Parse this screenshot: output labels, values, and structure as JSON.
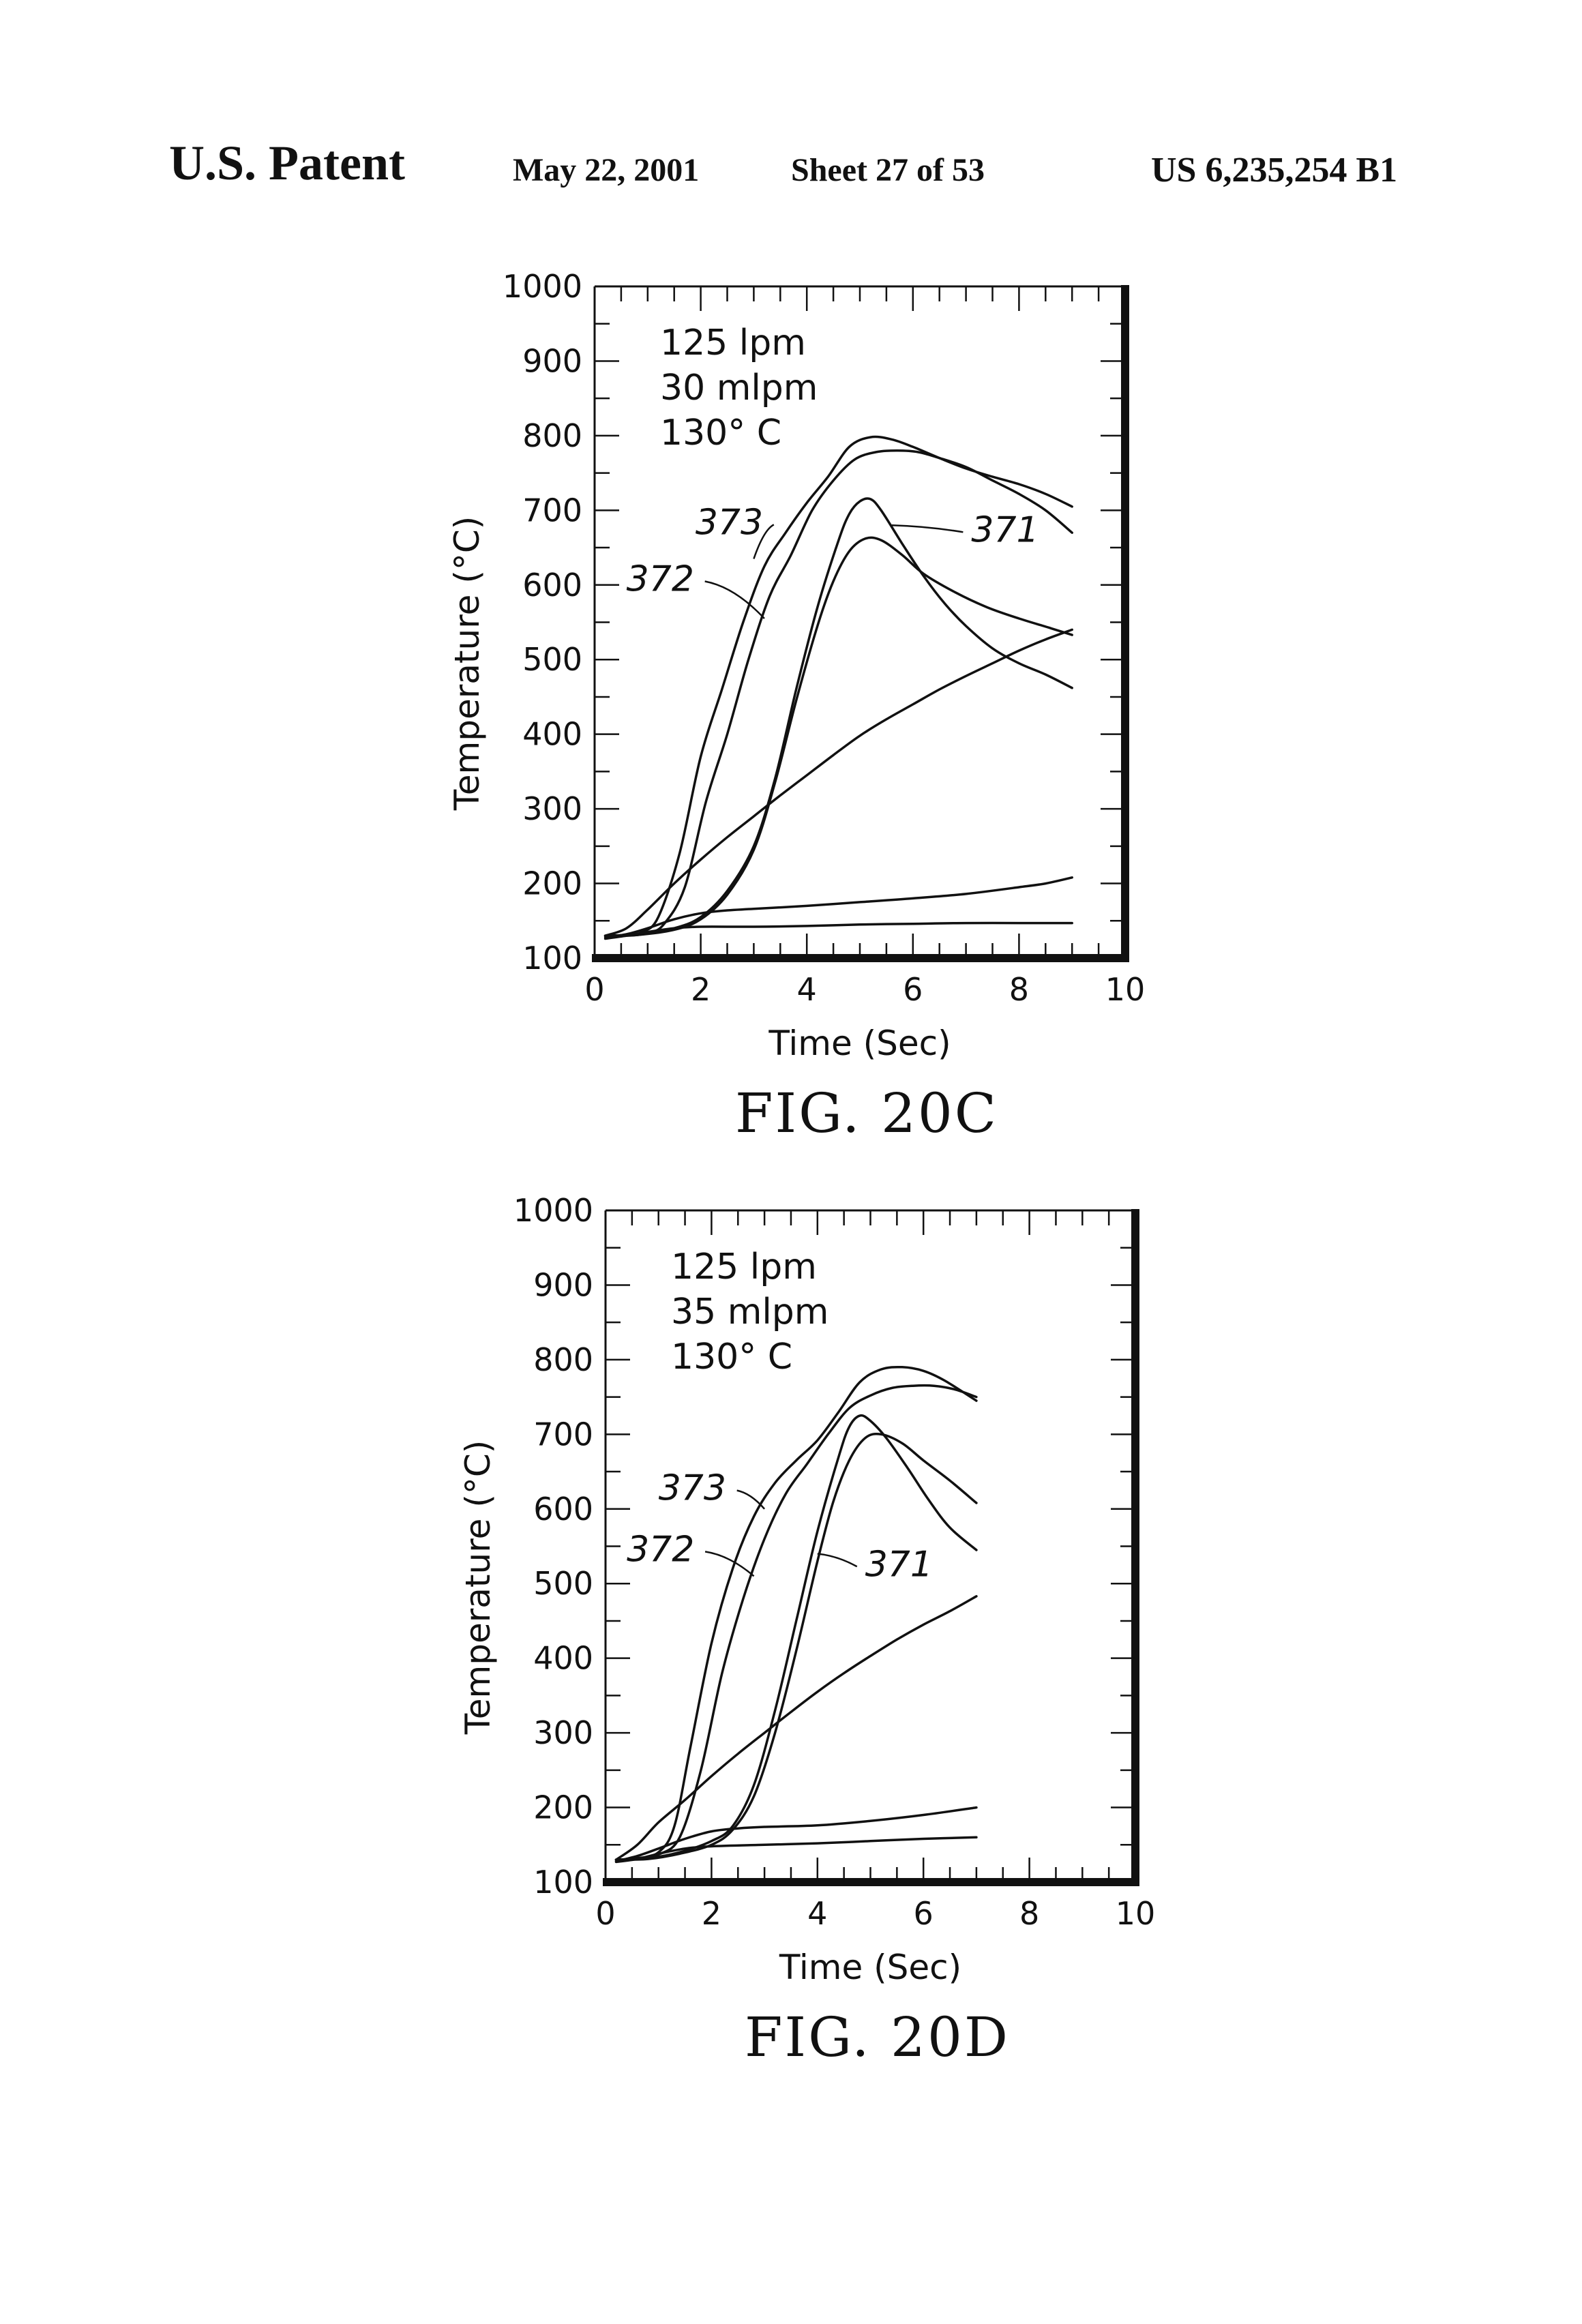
{
  "header": {
    "left": "U.S. Patent",
    "date": "May 22, 2001",
    "sheet": "Sheet 27 of 53",
    "number": "US 6,235,254 B1"
  },
  "chart_data": [
    {
      "type": "line",
      "title": "FIG. 20C",
      "xlabel": "Time (Sec)",
      "ylabel": "Temperature (°C)",
      "xlim": [
        0,
        10
      ],
      "ylim": [
        100,
        1000
      ],
      "xticks": [
        "0",
        "2",
        "4",
        "6",
        "8",
        "10"
      ],
      "yticks": [
        "100",
        "200",
        "300",
        "400",
        "500",
        "600",
        "700",
        "800",
        "900",
        "1000"
      ],
      "annotation": [
        "125  lpm",
        "30  mlpm",
        "130° C"
      ],
      "labels": [
        {
          "text": "373",
          "x": 1.9,
          "y": 668,
          "tx": 3.0,
          "ty": 635
        },
        {
          "text": "372",
          "x": 0.6,
          "y": 592,
          "tx": 3.2,
          "ty": 555
        },
        {
          "text": "371",
          "x": 7.1,
          "y": 658,
          "tx": 5.6,
          "ty": 680
        }
      ],
      "series": [
        {
          "x": [
            0.2,
            0.6,
            0.9,
            1.2,
            1.6,
            2.0,
            2.4,
            2.8,
            3.2,
            3.6,
            4.0,
            4.4,
            4.8,
            5.2,
            5.6,
            6.0,
            6.5,
            7.0,
            7.5,
            8.0,
            8.5,
            9.0
          ],
          "values": [
            130,
            131,
            135,
            155,
            240,
            370,
            460,
            550,
            625,
            670,
            710,
            745,
            785,
            798,
            795,
            785,
            770,
            756,
            745,
            735,
            722,
            705
          ]
        },
        {
          "x": [
            0.2,
            0.6,
            1.0,
            1.3,
            1.7,
            2.1,
            2.5,
            2.9,
            3.3,
            3.7,
            4.1,
            4.5,
            4.9,
            5.3,
            5.7,
            6.1,
            6.5,
            7.0,
            7.5,
            8.0,
            8.5,
            9.0
          ],
          "values": [
            130,
            131,
            134,
            145,
            195,
            310,
            400,
            500,
            585,
            640,
            700,
            740,
            768,
            778,
            780,
            778,
            770,
            758,
            740,
            722,
            700,
            670
          ]
        },
        {
          "x": [
            0.2,
            0.8,
            1.5,
            2.0,
            2.5,
            3.0,
            3.4,
            3.8,
            4.2,
            4.6,
            4.8,
            5.0,
            5.2,
            5.4,
            5.8,
            6.2,
            6.6,
            7.0,
            7.5,
            8.0,
            8.5,
            9.0
          ],
          "values": [
            130,
            131,
            140,
            155,
            190,
            250,
            340,
            460,
            570,
            660,
            695,
            712,
            715,
            700,
            655,
            612,
            575,
            545,
            515,
            495,
            480,
            462
          ]
        },
        {
          "x": [
            0.2,
            0.8,
            1.5,
            2.0,
            2.5,
            3.0,
            3.4,
            3.8,
            4.2,
            4.5,
            4.8,
            5.1,
            5.4,
            5.8,
            6.2,
            6.8,
            7.4,
            8.0,
            8.6,
            9.0
          ],
          "values": [
            130,
            131,
            138,
            152,
            185,
            245,
            335,
            445,
            545,
            605,
            645,
            662,
            660,
            640,
            615,
            590,
            570,
            555,
            542,
            533
          ]
        },
        {
          "x": [
            0.2,
            0.6,
            1.0,
            1.5,
            2.0,
            2.5,
            3.0,
            3.5,
            4.0,
            4.5,
            5.0,
            5.5,
            6.0,
            6.5,
            7.0,
            7.5,
            8.0,
            8.5,
            9.0
          ],
          "values": [
            130,
            140,
            165,
            200,
            232,
            262,
            290,
            318,
            345,
            372,
            398,
            420,
            440,
            460,
            478,
            495,
            512,
            527,
            540
          ]
        },
        {
          "x": [
            0.2,
            0.6,
            1.0,
            1.5,
            2.0,
            2.5,
            3.0,
            4.0,
            5.0,
            6.0,
            7.0,
            8.0,
            8.5,
            9.0
          ],
          "values": [
            128,
            132,
            140,
            152,
            160,
            164,
            166,
            170,
            175,
            180,
            186,
            195,
            200,
            208
          ]
        },
        {
          "x": [
            0.2,
            0.6,
            1.0,
            1.5,
            2.0,
            3.0,
            4.0,
            5.0,
            6.0,
            7.0,
            8.0,
            9.0
          ],
          "values": [
            126,
            130,
            135,
            140,
            142,
            142,
            143,
            145,
            146,
            147,
            147,
            147
          ]
        }
      ]
    },
    {
      "type": "line",
      "title": "FIG. 20D",
      "xlabel": "Time (Sec)",
      "ylabel": "Temperature (°C)",
      "xlim": [
        0,
        10
      ],
      "ylim": [
        100,
        1000
      ],
      "xticks": [
        "0",
        "2",
        "4",
        "6",
        "8",
        "10"
      ],
      "yticks": [
        "100",
        "200",
        "300",
        "400",
        "500",
        "600",
        "700",
        "800",
        "900",
        "1000"
      ],
      "annotation": [
        "125  lpm",
        "35  mlpm",
        "130° C"
      ],
      "labels": [
        {
          "text": "373",
          "x": 1.0,
          "y": 612,
          "tx": 3.0,
          "ty": 600
        },
        {
          "text": "372",
          "x": 0.4,
          "y": 530,
          "tx": 2.8,
          "ty": 510
        },
        {
          "text": "371",
          "x": 4.9,
          "y": 510,
          "tx": 4.0,
          "ty": 540
        }
      ],
      "series": [
        {
          "x": [
            0.2,
            0.6,
            1.0,
            1.3,
            1.6,
            2.0,
            2.4,
            2.8,
            3.2,
            3.6,
            4.0,
            4.4,
            4.8,
            5.2,
            5.6,
            6.0,
            6.4,
            7.0
          ],
          "values": [
            130,
            132,
            140,
            175,
            280,
            420,
            520,
            590,
            635,
            665,
            692,
            730,
            770,
            787,
            790,
            785,
            772,
            745
          ]
        },
        {
          "x": [
            0.2,
            0.6,
            1.0,
            1.4,
            1.8,
            2.2,
            2.6,
            3.0,
            3.4,
            3.8,
            4.2,
            4.6,
            5.0,
            5.4,
            5.8,
            6.2,
            6.6,
            7.0
          ],
          "values": [
            130,
            131,
            137,
            160,
            250,
            380,
            480,
            560,
            620,
            660,
            700,
            735,
            752,
            762,
            765,
            765,
            760,
            750
          ]
        },
        {
          "x": [
            0.2,
            0.8,
            1.4,
            2.0,
            2.4,
            2.8,
            3.2,
            3.6,
            4.0,
            4.4,
            4.6,
            4.8,
            5.0,
            5.3,
            5.7,
            6.1,
            6.5,
            7.0
          ],
          "values": [
            130,
            132,
            140,
            155,
            175,
            230,
            330,
            450,
            570,
            670,
            710,
            725,
            718,
            695,
            655,
            612,
            575,
            545
          ]
        },
        {
          "x": [
            0.2,
            0.8,
            1.4,
            2.0,
            2.4,
            2.8,
            3.2,
            3.6,
            4.0,
            4.3,
            4.6,
            4.9,
            5.2,
            5.6,
            6.0,
            6.5,
            7.0
          ],
          "values": [
            130,
            131,
            138,
            150,
            170,
            215,
            300,
            410,
            530,
            610,
            665,
            695,
            700,
            688,
            665,
            638,
            608
          ]
        },
        {
          "x": [
            0.2,
            0.6,
            1.0,
            1.5,
            2.0,
            2.5,
            3.0,
            3.5,
            4.0,
            4.5,
            5.0,
            5.5,
            6.0,
            6.5,
            7.0
          ],
          "values": [
            130,
            150,
            180,
            210,
            242,
            272,
            300,
            328,
            355,
            380,
            403,
            425,
            445,
            463,
            483
          ]
        },
        {
          "x": [
            0.2,
            0.6,
            1.0,
            1.5,
            2.0,
            2.5,
            3.0,
            4.0,
            5.0,
            6.0,
            7.0
          ],
          "values": [
            128,
            135,
            145,
            158,
            168,
            172,
            174,
            176,
            182,
            190,
            200
          ]
        },
        {
          "x": [
            0.2,
            0.6,
            1.0,
            1.5,
            2.0,
            3.0,
            4.0,
            5.0,
            6.0,
            7.0
          ],
          "values": [
            127,
            131,
            138,
            145,
            148,
            150,
            152,
            155,
            158,
            160
          ]
        }
      ]
    }
  ]
}
